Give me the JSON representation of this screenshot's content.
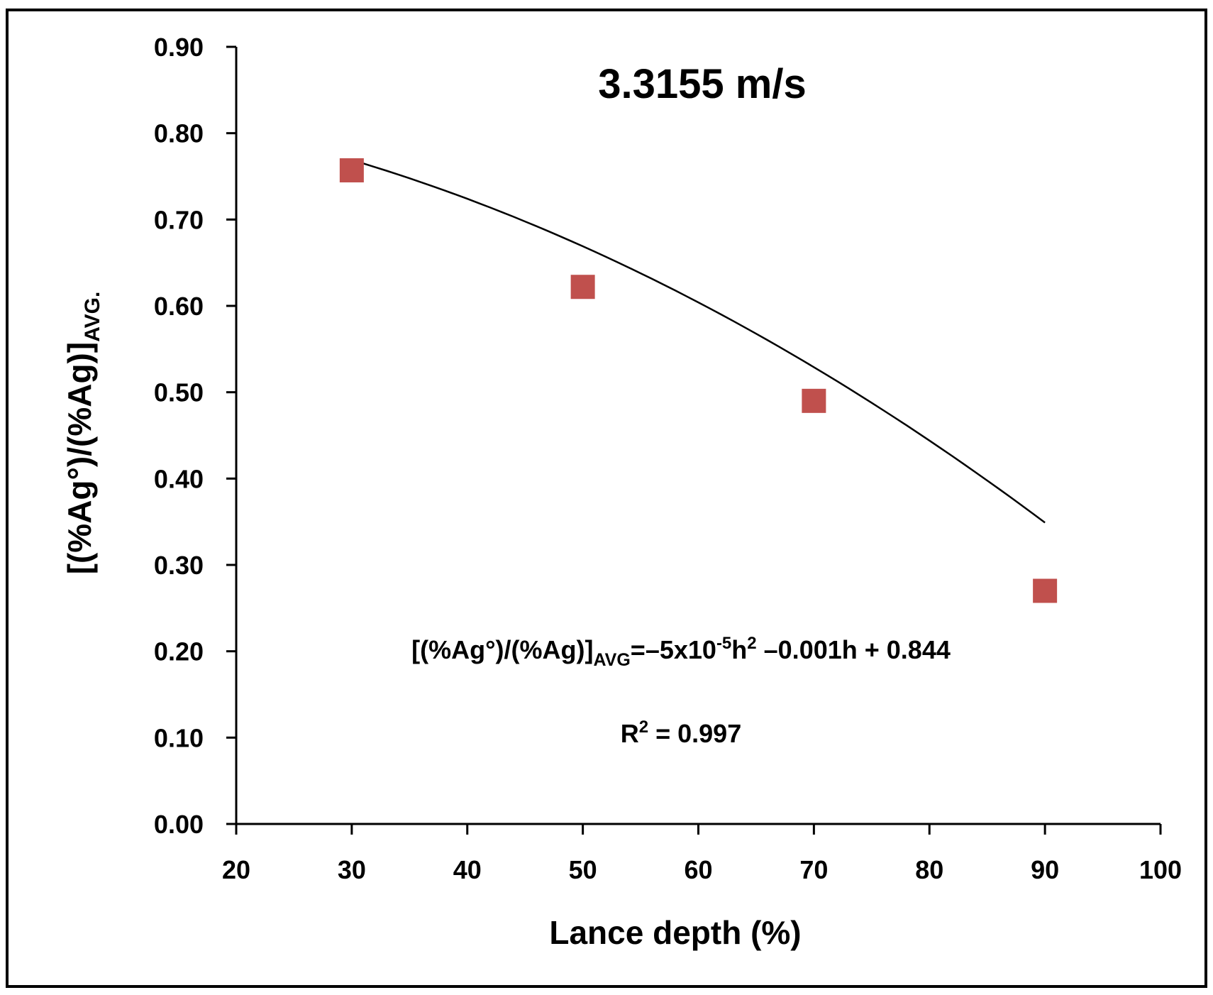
{
  "chart_data": {
    "type": "scatter",
    "title": "3.3155 m/s",
    "xlabel": "Lance depth (%)",
    "ylabel": {
      "main": "[(%Ag°)/(%Ag)]",
      "sub": "AVG."
    },
    "xlim": [
      20,
      100
    ],
    "ylim": [
      0,
      0.9
    ],
    "x_ticks": [
      "20",
      "30",
      "40",
      "50",
      "60",
      "70",
      "80",
      "90",
      "100"
    ],
    "y_ticks": [
      "0.00",
      "0.10",
      "0.20",
      "0.30",
      "0.40",
      "0.50",
      "0.60",
      "0.70",
      "0.80",
      "0.90"
    ],
    "grid": false,
    "legend": "none",
    "series": [
      {
        "marker": "square",
        "color": "#c0504d",
        "points": [
          {
            "x": 30,
            "y": 0.757
          },
          {
            "x": 50,
            "y": 0.622
          },
          {
            "x": 70,
            "y": 0.49
          },
          {
            "x": 90,
            "y": 0.27
          }
        ]
      }
    ],
    "trendline": {
      "type": "polynomial",
      "color": "#000000",
      "x_range": [
        30,
        90
      ],
      "coefficients": {
        "a": -5e-05,
        "b": -0.001,
        "c": 0.844
      }
    },
    "annotations": {
      "equation": {
        "lhs_main": "[(%Ag°)/(%Ag)]",
        "lhs_sub": "AVG",
        "rhs_1": "=–5x10",
        "rhs_sup_1": "-5",
        "rhs_2": "h",
        "rhs_sup_2": "2",
        "rhs_3": " –0.001h + 0.844"
      },
      "r_squared": {
        "label": "R",
        "sup": "2",
        "value": " = 0.997"
      }
    }
  }
}
